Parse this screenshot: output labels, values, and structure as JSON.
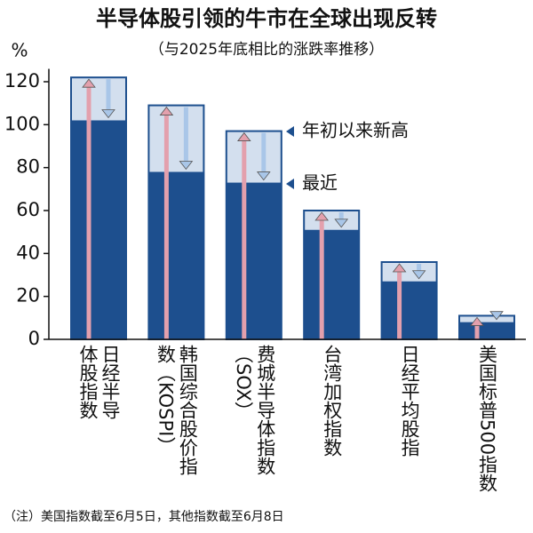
{
  "chart_data": {
    "type": "bar",
    "title": "半导体股引领的牛市在全球出现反转",
    "subtitle": "（与2025年底相比的涨跌率推移）",
    "y_label": "%",
    "note": "（注）美国指数截至6月5日，其他指数截至6月8日",
    "categories": [
      "日经半导体股指数",
      "韩国综合股价指数（KOSPI）",
      "费城半导体指数（SOX）",
      "台湾加权指数",
      "日经平均股指",
      "美国标普500指数"
    ],
    "series": [
      {
        "name": "年初以来新高",
        "color": "#d3dfee",
        "values": [
          122,
          109,
          97,
          60,
          36,
          11
        ]
      },
      {
        "name": "最近",
        "color": "#1d4f8e",
        "values": [
          102,
          78,
          73,
          51,
          27,
          8
        ]
      }
    ],
    "ylim": [
      0,
      126
    ],
    "yticks": [
      0,
      20,
      40,
      60,
      80,
      100,
      120
    ]
  }
}
